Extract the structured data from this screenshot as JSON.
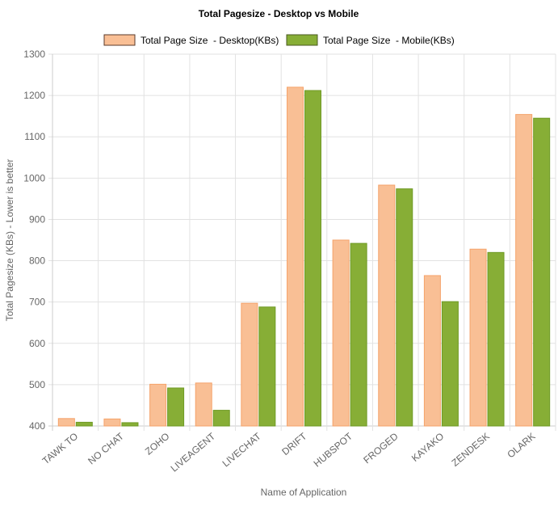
{
  "chart_data": {
    "type": "bar",
    "title": "Total Pagesize - Desktop vs Mobile",
    "xlabel": "Name of Application",
    "ylabel": "Total Pagesize (KBs) - Lower is better",
    "ylim": [
      400,
      1300
    ],
    "yticks": [
      400,
      500,
      600,
      700,
      800,
      900,
      1000,
      1100,
      1200,
      1300
    ],
    "grid": true,
    "legend_position": "top",
    "categories": [
      "TAWK TO",
      "NO CHAT",
      "ZOHO",
      "LIVEAGENT",
      "LIVECHAT",
      "DRIFT",
      "HUBSPOT",
      "FROGED",
      "KAYAKO",
      "ZENDESK",
      "OLARK"
    ],
    "series": [
      {
        "name": "Total Page Size  - Desktop(KBs)",
        "color": "#f9bf95",
        "border": "#f5a36b",
        "values": [
          418,
          417,
          501,
          504,
          697,
          1220,
          850,
          983,
          764,
          828,
          1154
        ]
      },
      {
        "name": "Total Page Size  - Mobile(KBs)",
        "color": "#87ae36",
        "border": "#6f9a25",
        "values": [
          409,
          408,
          492,
          438,
          688,
          1212,
          842,
          974,
          701,
          820,
          1145
        ]
      }
    ]
  }
}
